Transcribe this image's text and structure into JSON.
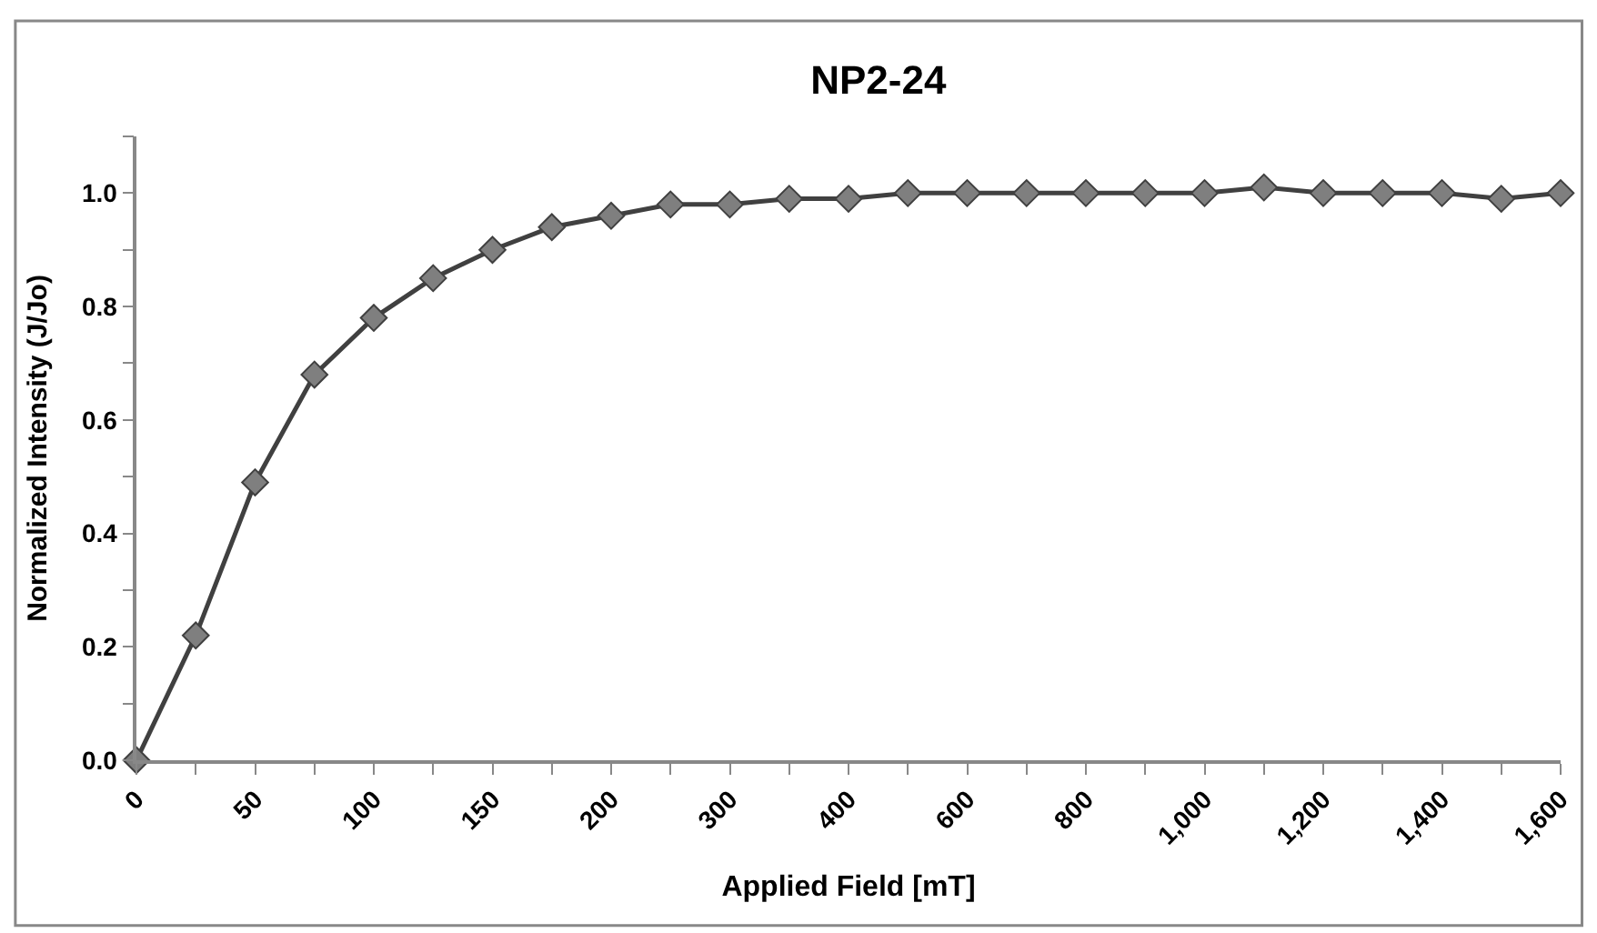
{
  "chart_data": {
    "type": "line",
    "title": "NP2-24",
    "xlabel": "Applied Field [mT]",
    "ylabel": "Normalized Intensity (J/Jo)",
    "categories": [
      "0",
      null,
      "50",
      null,
      "100",
      null,
      "150",
      null,
      "200",
      null,
      "300",
      null,
      "400",
      null,
      "600",
      null,
      "800",
      null,
      "1,000",
      null,
      "1,200",
      null,
      "1,400",
      null,
      "1,600"
    ],
    "series": [
      {
        "color": "#404040",
        "values": [
          0,
          0.22,
          0.49,
          0.68,
          0.78,
          0.85,
          0.9,
          0.94,
          0.96,
          0.98,
          0.98,
          0.99,
          0.99,
          1.0,
          1.0,
          1.0,
          1.0,
          1.0,
          1.0,
          1.01,
          1.0,
          1.0,
          1.0,
          0.99,
          1.0
        ]
      }
    ],
    "ylim": [
      0,
      1.1
    ],
    "yticks": [
      {
        "value": 0,
        "label": "0.0"
      },
      {
        "value": 0.1,
        "label": null
      },
      {
        "value": 0.2,
        "label": "0.2"
      },
      {
        "value": 0.3,
        "label": null
      },
      {
        "value": 0.4,
        "label": "0.4"
      },
      {
        "value": 0.5,
        "label": null
      },
      {
        "value": 0.6,
        "label": "0.6"
      },
      {
        "value": 0.7,
        "label": null
      },
      {
        "value": 0.8,
        "label": "0.8"
      },
      {
        "value": 0.9,
        "label": null
      },
      {
        "value": 1.0,
        "label": "1.0"
      },
      {
        "value": 1.1,
        "label": null
      }
    ],
    "marker": "diamond",
    "line_style": "solid",
    "legend": false
  }
}
